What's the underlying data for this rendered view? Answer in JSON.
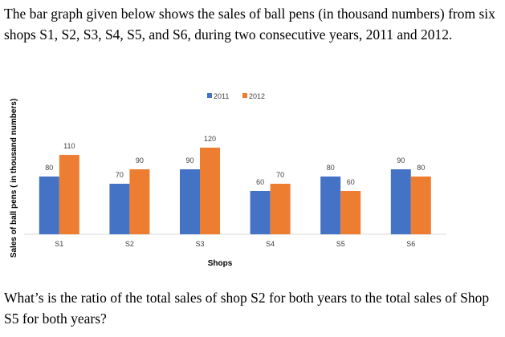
{
  "intro_text": "The bar graph given below shows the sales of ball pens (in thousand numbers) from six shops S1, S2, S3, S4, S5, and S6, during two consecutive years, 2011 and 2012.",
  "question_text": "What’s is the ratio of the total sales of shop S2 for both years to the total sales of Shop S5 for both years?",
  "chart_data": {
    "type": "bar",
    "categories": [
      "S1",
      "S2",
      "S3",
      "S4",
      "S5",
      "S6"
    ],
    "series": [
      {
        "name": "2011",
        "values": [
          80,
          70,
          90,
          60,
          80,
          90
        ],
        "color": "#4472C4"
      },
      {
        "name": "2012",
        "values": [
          110,
          90,
          120,
          70,
          60,
          80
        ],
        "color": "#ED7D31"
      }
    ],
    "title": "",
    "xlabel": "Shops",
    "ylabel": "Sales of ball pens ( in thousand numbers)",
    "ylim": [
      0,
      130
    ],
    "grid": false,
    "legend": "top-center",
    "data_labels": true
  }
}
